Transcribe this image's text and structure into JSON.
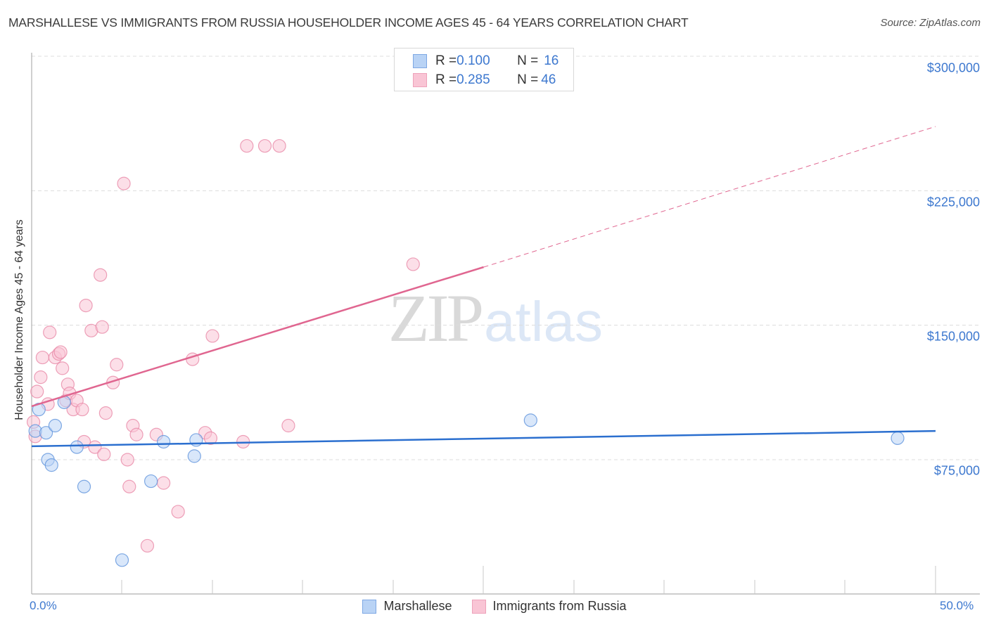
{
  "header": {
    "title": "MARSHALLESE VS IMMIGRANTS FROM RUSSIA HOUSEHOLDER INCOME AGES 45 - 64 YEARS CORRELATION CHART",
    "source": "Source: ZipAtlas.com"
  },
  "watermark": {
    "zip": "ZIP",
    "atlas": "atlas"
  },
  "legend_top": {
    "rows": [
      {
        "r_label": "R = ",
        "r_value": "0.100",
        "n_label": "N = ",
        "n_value": "16",
        "series": "Marshallese"
      },
      {
        "r_label": "R = ",
        "r_value": "0.285",
        "n_label": "N = ",
        "n_value": "46",
        "series": "Immigrants from Russia"
      }
    ]
  },
  "legend_bottom": {
    "items": [
      {
        "label": "Marshallese"
      },
      {
        "label": "Immigrants from Russia"
      }
    ]
  },
  "axes": {
    "ylabel": "Householder Income Ages 45 - 64 years",
    "y_ticks": [
      "$300,000",
      "$225,000",
      "$150,000",
      "$75,000"
    ],
    "x_tick_left": "0.0%",
    "x_tick_right": "50.0%"
  },
  "colors": {
    "marshallese_fill": "#b9d3f5",
    "marshallese_stroke": "#5f93dc",
    "marshallese_line": "#2b6fcf",
    "russia_fill": "#f9c5d5",
    "russia_stroke": "#e88aa8",
    "russia_line": "#e06690",
    "tick_text": "#3d78cf"
  },
  "chart_data": {
    "type": "scatter",
    "title": "MARSHALLESE VS IMMIGRANTS FROM RUSSIA HOUSEHOLDER INCOME AGES 45 - 64 YEARS CORRELATION CHART",
    "xlabel": "",
    "ylabel": "Householder Income Ages 45 - 64 years",
    "xlim": [
      0,
      50
    ],
    "ylim": [
      0,
      306000
    ],
    "x_unit": "%",
    "y_ticks": [
      75000,
      150000,
      225000,
      300000
    ],
    "grid": "horizontal dashed",
    "legend_position": "top-center and bottom-center",
    "series": [
      {
        "name": "Marshallese",
        "R": 0.1,
        "N": 16,
        "points": [
          {
            "x": 0.2,
            "y": 91000
          },
          {
            "x": 0.4,
            "y": 103000
          },
          {
            "x": 0.8,
            "y": 90000
          },
          {
            "x": 0.9,
            "y": 75000
          },
          {
            "x": 1.1,
            "y": 72000
          },
          {
            "x": 1.3,
            "y": 94000
          },
          {
            "x": 1.8,
            "y": 107000
          },
          {
            "x": 2.5,
            "y": 82000
          },
          {
            "x": 2.9,
            "y": 60000
          },
          {
            "x": 5.0,
            "y": 19000
          },
          {
            "x": 6.6,
            "y": 63000
          },
          {
            "x": 7.3,
            "y": 85000
          },
          {
            "x": 9.0,
            "y": 77000
          },
          {
            "x": 9.1,
            "y": 86000
          },
          {
            "x": 27.6,
            "y": 97000
          },
          {
            "x": 47.9,
            "y": 87000
          }
        ],
        "trend": {
          "x": [
            0,
            50
          ],
          "y": [
            82500,
            91000
          ],
          "style": "solid"
        }
      },
      {
        "name": "Immigrants from Russia",
        "R": 0.285,
        "N": 46,
        "points": [
          {
            "x": 0.1,
            "y": 96000
          },
          {
            "x": 0.3,
            "y": 113000
          },
          {
            "x": 0.5,
            "y": 121000
          },
          {
            "x": 0.6,
            "y": 132000
          },
          {
            "x": 0.9,
            "y": 106000
          },
          {
            "x": 1.0,
            "y": 146000
          },
          {
            "x": 1.3,
            "y": 132000
          },
          {
            "x": 1.5,
            "y": 134000
          },
          {
            "x": 1.6,
            "y": 135000
          },
          {
            "x": 1.7,
            "y": 126000
          },
          {
            "x": 1.9,
            "y": 108000
          },
          {
            "x": 2.0,
            "y": 117000
          },
          {
            "x": 2.1,
            "y": 112000
          },
          {
            "x": 2.3,
            "y": 103000
          },
          {
            "x": 2.5,
            "y": 108000
          },
          {
            "x": 2.8,
            "y": 103000
          },
          {
            "x": 2.9,
            "y": 85000
          },
          {
            "x": 3.0,
            "y": 161000
          },
          {
            "x": 3.3,
            "y": 147000
          },
          {
            "x": 3.5,
            "y": 82000
          },
          {
            "x": 3.8,
            "y": 178000
          },
          {
            "x": 3.9,
            "y": 149000
          },
          {
            "x": 4.1,
            "y": 101000
          },
          {
            "x": 4.0,
            "y": 78000
          },
          {
            "x": 4.5,
            "y": 118000
          },
          {
            "x": 4.7,
            "y": 128000
          },
          {
            "x": 5.1,
            "y": 229000
          },
          {
            "x": 5.3,
            "y": 75000
          },
          {
            "x": 5.4,
            "y": 60000
          },
          {
            "x": 5.6,
            "y": 94000
          },
          {
            "x": 5.8,
            "y": 89000
          },
          {
            "x": 6.4,
            "y": 27000
          },
          {
            "x": 6.9,
            "y": 89000
          },
          {
            "x": 7.3,
            "y": 62000
          },
          {
            "x": 8.1,
            "y": 46000
          },
          {
            "x": 8.9,
            "y": 131000
          },
          {
            "x": 9.6,
            "y": 90000
          },
          {
            "x": 9.9,
            "y": 87000
          },
          {
            "x": 10.0,
            "y": 144000
          },
          {
            "x": 11.7,
            "y": 85000
          },
          {
            "x": 11.9,
            "y": 250000
          },
          {
            "x": 12.9,
            "y": 250000
          },
          {
            "x": 13.7,
            "y": 250000
          },
          {
            "x": 14.2,
            "y": 94000
          },
          {
            "x": 21.1,
            "y": 184000
          },
          {
            "x": 0.2,
            "y": 88000
          }
        ],
        "trend": {
          "x": [
            0,
            25,
            50
          ],
          "y": [
            104800,
            182400,
            260800
          ],
          "style": "solid to 25%, dashed beyond"
        }
      }
    ]
  }
}
